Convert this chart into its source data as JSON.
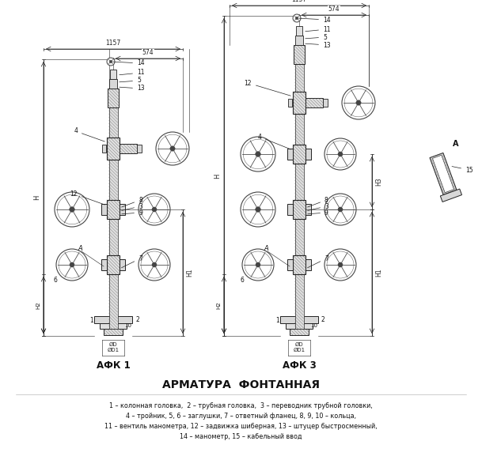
{
  "title": "АРМАТУРА  ФОНТАННАЯ",
  "afk1_label": "АФК 1",
  "afk3_label": "АФК 3",
  "view_a_label": "А",
  "legend_lines": [
    "1 – колонная головка,  2 – трубная головка,  3 – переводник трубной головки,",
    "4 – тройник, 5, 6 – заглушки, 7 – ответный фланец, 8, 9, 10 – кольца,",
    "11 – вентиль манометра, 12 – задвижка шиберная, 13 – штуцер быстросменный,",
    "14 – манометр, 15 – кабельный ввод"
  ],
  "bg_color": "#ffffff",
  "line_color": "#222222",
  "text_color": "#111111",
  "dim_color": "#222222",
  "hatch_color": "#555555",
  "hatch_face": "#e0e0e0",
  "wheel_color": "#444444",
  "body_face": "#d8d8d8"
}
